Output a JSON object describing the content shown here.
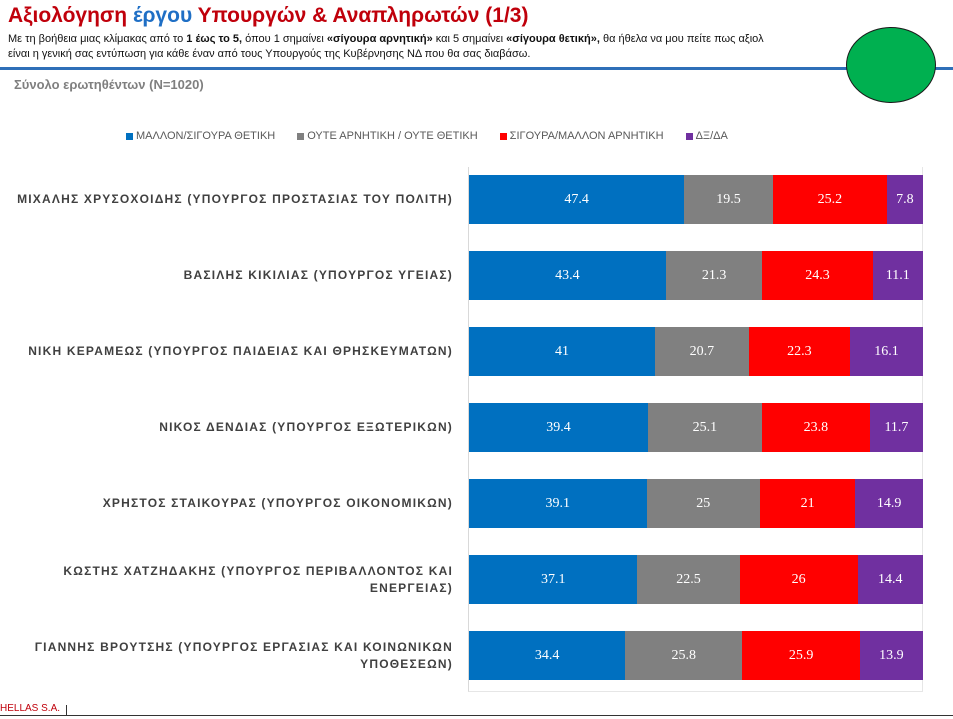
{
  "header": {
    "title_part1": "Αξιολόγηση ",
    "title_part2": "έργου",
    "title_part3": " Υπουργών & Αναπληρωτών (1/3)",
    "subtitle_1": "Με τη βοήθεια μιας κλίμακας από το ",
    "subtitle_b1": "1 έως το 5,",
    "subtitle_2": " όπου 1 σημαίνει ",
    "subtitle_b2": "«σίγουρα αρνητική»",
    "subtitle_3": " και 5 σημαίνει ",
    "subtitle_b3": "«σίγουρα θετική»,",
    "subtitle_4": "  θα ήθελα να μου πείτε πως αξιολ",
    "subtitle_line2": "είναι η γενική σας εντύπωση για κάθε έναν  από τους Υπουργούς της  Κυβέρνησης ΝΔ που θα σας διαβάσω.",
    "sample": "Σύνολο ερωτηθέντων (N=1020)",
    "rule_color": "#2f6fb8",
    "logo_color": "#00b050"
  },
  "footer": {
    "text": "HELLAS S.A."
  },
  "chart_data": {
    "type": "bar",
    "orientation": "horizontal",
    "stacked": true,
    "xlim": [
      0,
      100
    ],
    "legend_position": "top",
    "categories": [
      "ΜΙΧΑΛΗΣ ΧΡΥΣΟΧΟΙΔΗΣ (ΥΠΟΥΡΓΟΣ ΠΡΟΣΤΑΣΙΑΣ ΤΟΥ ΠΟΛΙΤΗ)",
      "ΒΑΣΙΛΗΣ ΚΙΚΙΛΙΑΣ (ΥΠΟΥΡΓΟΣ ΥΓΕΙΑΣ)",
      "ΝΙΚΗ ΚΕΡΑΜΕΩΣ (ΥΠΟΥΡΓΟΣ ΠΑΙΔΕΙΑΣ ΚΑΙ ΘΡΗΣΚΕΥΜΑΤΩΝ)",
      "ΝΙΚΟΣ ΔΕΝΔΙΑΣ (ΥΠΟΥΡΓΟΣ ΕΞΩΤΕΡΙΚΩΝ)",
      "ΧΡΗΣΤΟΣ ΣΤΑΙΚΟΥΡΑΣ (ΥΠΟΥΡΓΟΣ ΟΙΚΟΝΟΜΙΚΩΝ)",
      "ΚΩΣΤΗΣ ΧΑΤΖΗΔΑΚΗΣ (ΥΠΟΥΡΓΟΣ ΠΕΡΙΒΑΛΛΟΝΤΟΣ ΚΑΙ ΕΝΕΡΓΕΙΑΣ)",
      "ΓΙΑΝΝΗΣ ΒΡΟΥΤΣΗΣ (ΥΠΟΥΡΓΟΣ ΕΡΓΑΣΙΑΣ ΚΑΙ ΚΟΙΝΩΝΙΚΩΝ ΥΠΟΘΕΣΕΩΝ)"
    ],
    "series": [
      {
        "name": "ΜΑΛΛΟΝ/ΣΙΓΟΥΡΑ ΘΕΤΙΚΗ",
        "color": "#0070c0",
        "values": [
          47.4,
          43.4,
          41,
          39.4,
          39.1,
          37.1,
          34.4
        ]
      },
      {
        "name": "ΟΥΤΕ ΑΡΝΗΤΙΚΗ / ΟΥΤΕ ΘΕΤΙΚΗ",
        "color": "#808080",
        "values": [
          19.5,
          21.3,
          20.7,
          25.1,
          25,
          22.5,
          25.8
        ]
      },
      {
        "name": "ΣΙΓΟΥΡΑ/ΜΑΛΛΟΝ ΑΡΝΗΤΙΚΗ",
        "color": "#ff0000",
        "values": [
          25.2,
          24.3,
          22.3,
          23.8,
          21,
          26,
          25.9
        ]
      },
      {
        "name": "ΔΞ/ΔΑ",
        "color": "#7030a0",
        "values": [
          7.8,
          11.1,
          16.1,
          11.7,
          14.9,
          14.4,
          13.9
        ]
      }
    ]
  }
}
